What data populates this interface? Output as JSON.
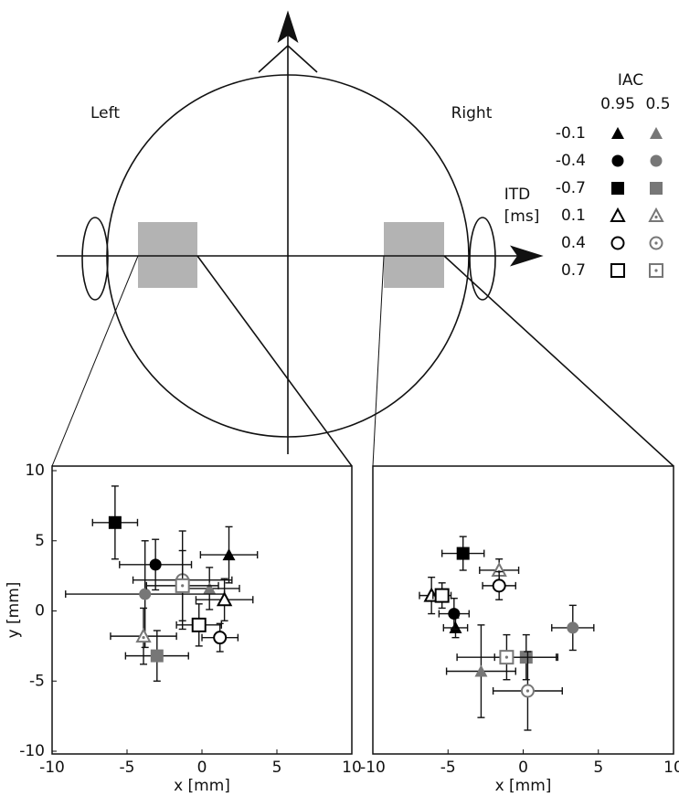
{
  "head": {
    "left_label": "Left",
    "right_label": "Right"
  },
  "legend": {
    "title": "IAC",
    "columns": [
      "0.95",
      "0.5"
    ],
    "row_title": [
      "ITD",
      "[ms]"
    ],
    "rows": [
      "-0.1",
      "-0.4",
      "-0.7",
      "0.1",
      "0.4",
      "0.7"
    ]
  },
  "chart_data": [
    {
      "type": "scatter",
      "xlabel": "x [mm]",
      "ylabel": "y [mm]",
      "xlim": [
        -10,
        10
      ],
      "ylim": [
        -10,
        10
      ],
      "xticks": [
        -10,
        -5,
        0,
        5,
        10
      ],
      "yticks": [
        -10,
        -5,
        0,
        5,
        10
      ],
      "series": [
        {
          "marker": "triangle",
          "color": "#000",
          "filled": true,
          "dotted": false,
          "x": [
            1.8
          ],
          "values": [
            4.0
          ],
          "xerr": [
            1.9
          ],
          "yerr": [
            2.0
          ]
        },
        {
          "marker": "triangle",
          "color": "#777",
          "filled": true,
          "dotted": false,
          "x": [
            0.5
          ],
          "values": [
            1.6
          ],
          "xerr": [
            2.0
          ],
          "yerr": [
            1.5
          ]
        },
        {
          "marker": "circle",
          "color": "#000",
          "filled": true,
          "dotted": false,
          "x": [
            -3.1
          ],
          "values": [
            3.3
          ],
          "xerr": [
            2.4
          ],
          "yerr": [
            1.8
          ]
        },
        {
          "marker": "circle",
          "color": "#777",
          "filled": true,
          "dotted": false,
          "x": [
            -3.8
          ],
          "values": [
            1.2
          ],
          "xerr": [
            5.3
          ],
          "yerr": [
            3.8
          ]
        },
        {
          "marker": "square",
          "color": "#000",
          "filled": true,
          "dotted": false,
          "x": [
            -5.8
          ],
          "values": [
            6.3
          ],
          "xerr": [
            1.5
          ],
          "yerr": [
            2.6
          ]
        },
        {
          "marker": "square",
          "color": "#777",
          "filled": true,
          "dotted": false,
          "x": [
            -3.0
          ],
          "values": [
            -3.2
          ],
          "xerr": [
            2.1
          ],
          "yerr": [
            1.8
          ]
        },
        {
          "marker": "triangle",
          "color": "#000",
          "filled": false,
          "dotted": false,
          "x": [
            1.5
          ],
          "values": [
            0.8
          ],
          "xerr": [
            1.9
          ],
          "yerr": [
            1.5
          ]
        },
        {
          "marker": "triangle",
          "color": "#777",
          "filled": false,
          "dotted": true,
          "x": [
            -3.9
          ],
          "values": [
            -1.8
          ],
          "xerr": [
            2.2
          ],
          "yerr": [
            2.0
          ]
        },
        {
          "marker": "circle",
          "color": "#000",
          "filled": false,
          "dotted": false,
          "x": [
            1.2
          ],
          "values": [
            -1.9
          ],
          "xerr": [
            1.2
          ],
          "yerr": [
            1.0
          ]
        },
        {
          "marker": "circle",
          "color": "#777",
          "filled": false,
          "dotted": true,
          "x": [
            -1.3
          ],
          "values": [
            2.2
          ],
          "xerr": [
            3.3
          ],
          "yerr": [
            3.5
          ]
        },
        {
          "marker": "square",
          "color": "#000",
          "filled": false,
          "dotted": false,
          "x": [
            -0.2
          ],
          "values": [
            -1.0
          ],
          "xerr": [
            1.5
          ],
          "yerr": [
            1.5
          ]
        },
        {
          "marker": "square",
          "color": "#777",
          "filled": false,
          "dotted": true,
          "x": [
            -1.3
          ],
          "values": [
            1.8
          ],
          "xerr": [
            2.4
          ],
          "yerr": [
            2.5
          ]
        }
      ]
    },
    {
      "type": "scatter",
      "xlabel": "x [mm]",
      "xlim": [
        -10,
        10
      ],
      "ylim": [
        -10,
        10
      ],
      "xticks": [
        -10,
        -5,
        0,
        5,
        10
      ],
      "series": [
        {
          "marker": "triangle",
          "color": "#000",
          "filled": true,
          "dotted": false,
          "x": [
            -4.5
          ],
          "values": [
            -1.2
          ],
          "xerr": [
            0.8
          ],
          "yerr": [
            0.7
          ]
        },
        {
          "marker": "triangle",
          "color": "#777",
          "filled": true,
          "dotted": false,
          "x": [
            -2.8
          ],
          "values": [
            -4.3
          ],
          "xerr": [
            2.3
          ],
          "yerr": [
            3.3
          ]
        },
        {
          "marker": "circle",
          "color": "#000",
          "filled": true,
          "dotted": false,
          "x": [
            -4.6
          ],
          "values": [
            -0.2
          ],
          "xerr": [
            1.0
          ],
          "yerr": [
            1.1
          ]
        },
        {
          "marker": "circle",
          "color": "#777",
          "filled": true,
          "dotted": false,
          "x": [
            3.3
          ],
          "values": [
            -1.2
          ],
          "xerr": [
            1.4
          ],
          "yerr": [
            1.6
          ]
        },
        {
          "marker": "square",
          "color": "#000",
          "filled": true,
          "dotted": false,
          "x": [
            -4.0
          ],
          "values": [
            4.1
          ],
          "xerr": [
            1.4
          ],
          "yerr": [
            1.2
          ]
        },
        {
          "marker": "square",
          "color": "#777",
          "filled": true,
          "dotted": false,
          "x": [
            0.2
          ],
          "values": [
            -3.3
          ],
          "xerr": [
            2.1
          ],
          "yerr": [
            1.6
          ]
        },
        {
          "marker": "triangle",
          "color": "#000",
          "filled": false,
          "dotted": false,
          "x": [
            -6.1
          ],
          "values": [
            1.1
          ],
          "xerr": [
            0.8
          ],
          "yerr": [
            1.3
          ]
        },
        {
          "marker": "triangle",
          "color": "#777",
          "filled": false,
          "dotted": true,
          "x": [
            -1.6
          ],
          "values": [
            2.9
          ],
          "xerr": [
            1.3
          ],
          "yerr": [
            0.8
          ]
        },
        {
          "marker": "circle",
          "color": "#000",
          "filled": false,
          "dotted": false,
          "x": [
            -1.6
          ],
          "values": [
            1.8
          ],
          "xerr": [
            1.1
          ],
          "yerr": [
            1.0
          ]
        },
        {
          "marker": "circle",
          "color": "#777",
          "filled": false,
          "dotted": true,
          "x": [
            0.3
          ],
          "values": [
            -5.7
          ],
          "xerr": [
            2.3
          ],
          "yerr": [
            2.8
          ]
        },
        {
          "marker": "square",
          "color": "#000",
          "filled": false,
          "dotted": false,
          "x": [
            -5.4
          ],
          "values": [
            1.1
          ],
          "xerr": [
            0.6
          ],
          "yerr": [
            0.9
          ]
        },
        {
          "marker": "square",
          "color": "#777",
          "filled": false,
          "dotted": true,
          "x": [
            -1.1
          ],
          "values": [
            -3.3
          ],
          "xerr": [
            3.3
          ],
          "yerr": [
            1.6
          ]
        }
      ]
    }
  ]
}
